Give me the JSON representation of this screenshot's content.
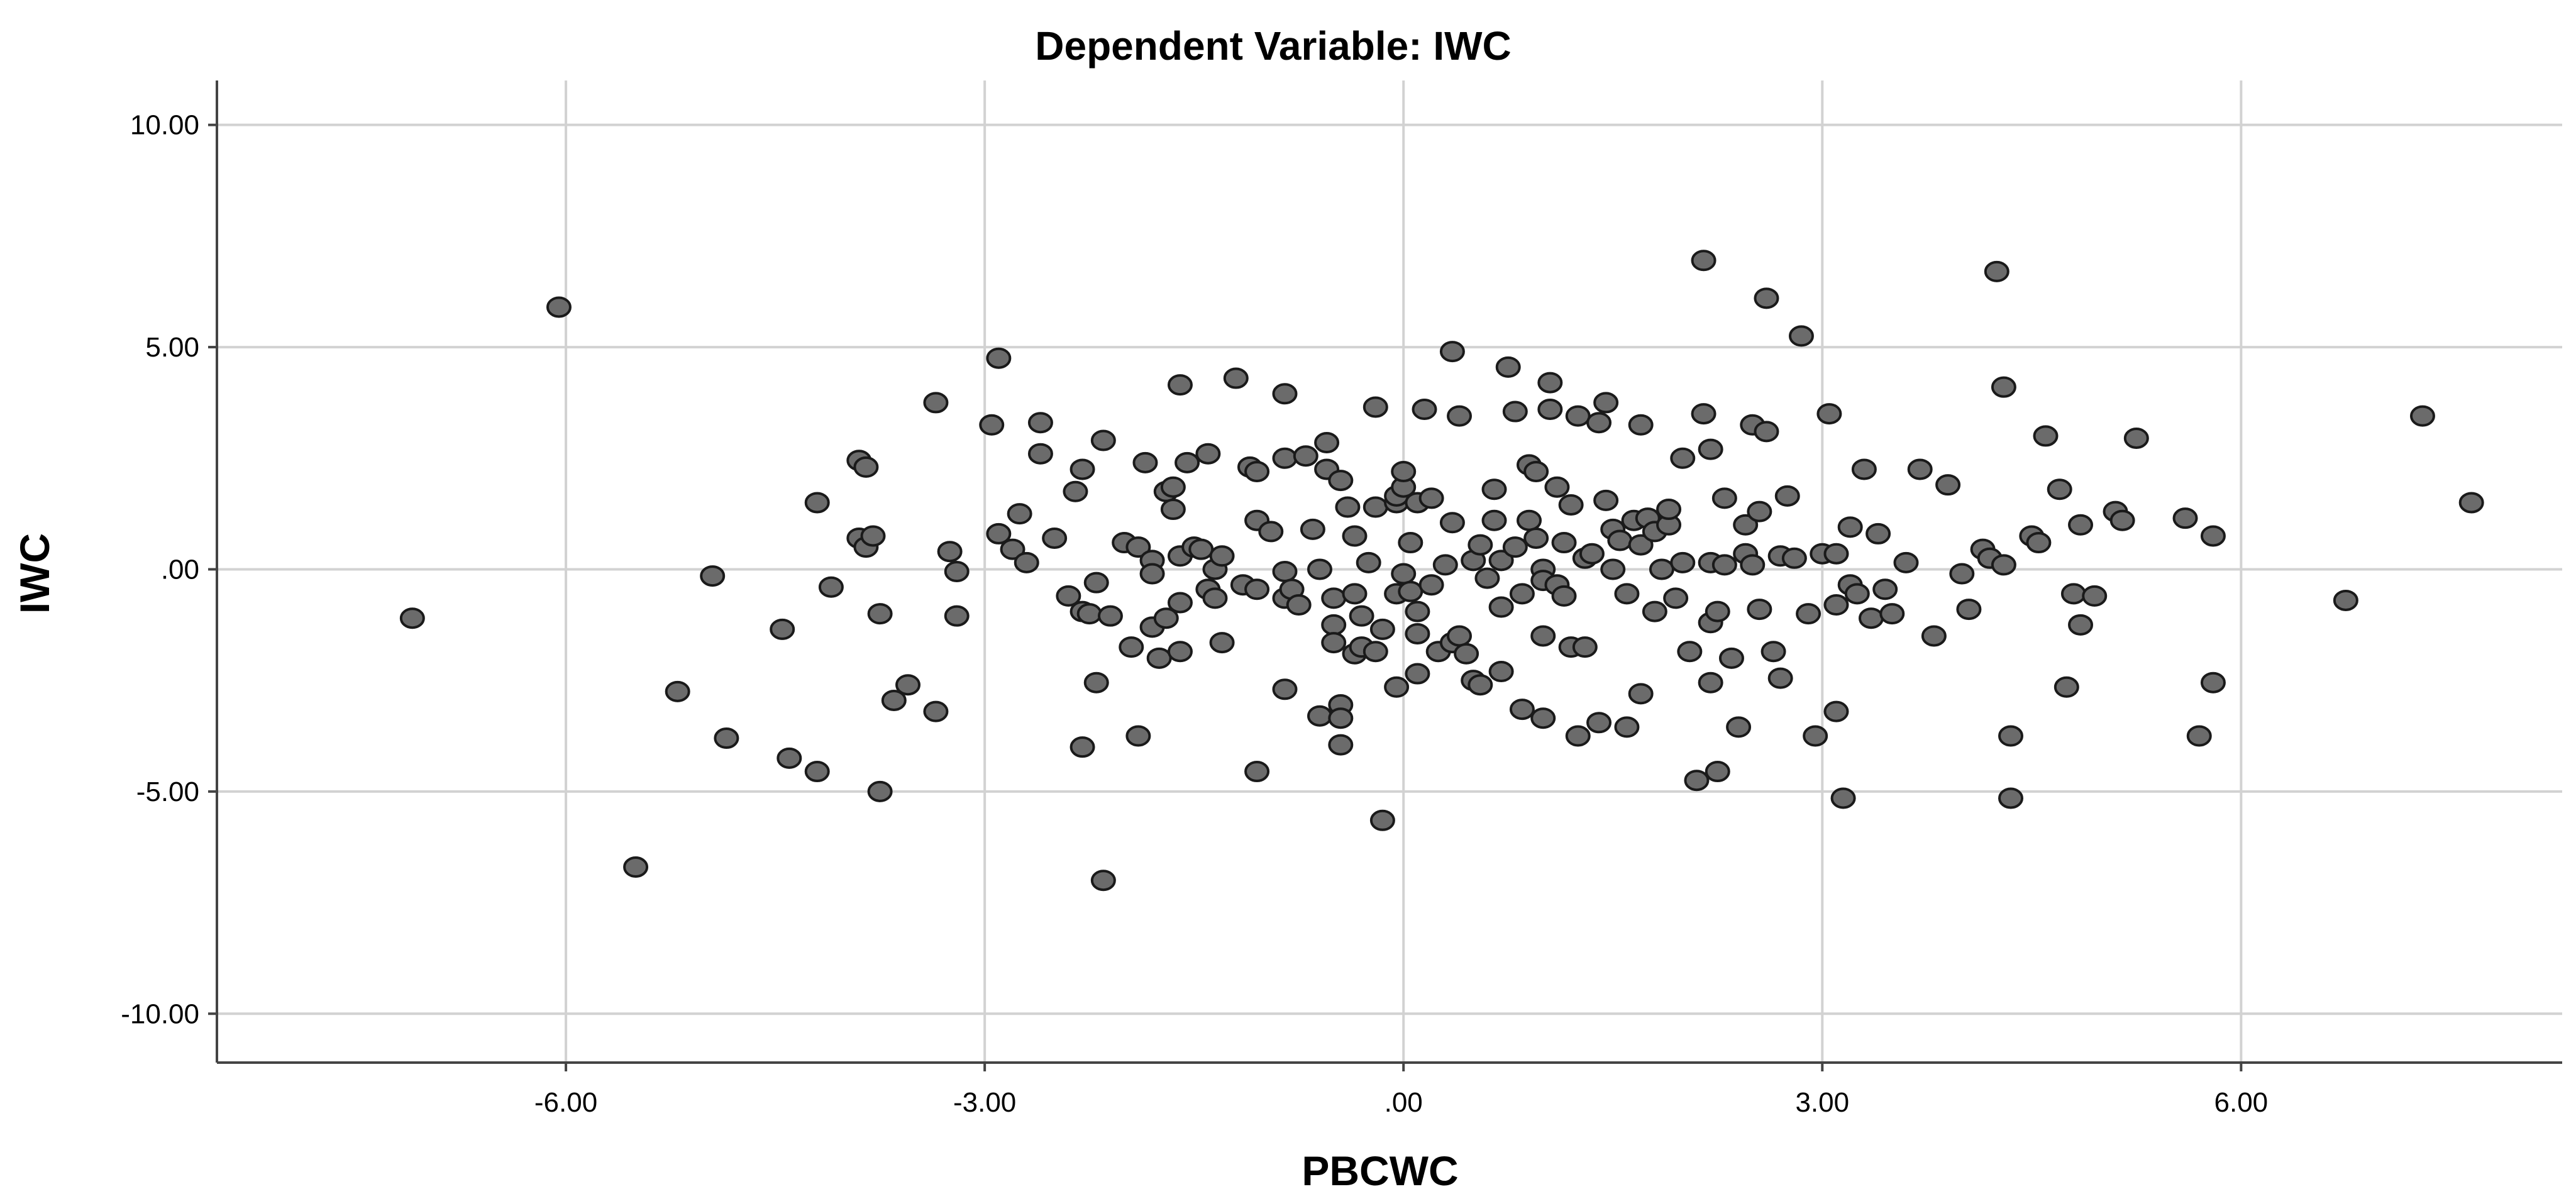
{
  "chart_data": {
    "type": "scatter",
    "title": "Dependent Variable: IWC",
    "xlabel": "PBCWC",
    "ylabel": "IWC",
    "xlim": [
      -8.5,
      8.3
    ],
    "ylim": [
      -11.1,
      11.0
    ],
    "x_ticks": [
      -6,
      -3,
      0,
      3,
      6
    ],
    "y_ticks": [
      -10,
      -5,
      0,
      5,
      10
    ],
    "x_tick_labels": [
      "-6.00",
      "-3.00",
      ".00",
      "3.00",
      "6.00"
    ],
    "y_tick_labels": [
      "-10.00",
      "-5.00",
      ".00",
      "5.00",
      "10.00"
    ],
    "grid": true,
    "point_color": "#6b6b6b",
    "point_edge_color": "#1a1a1a",
    "points": [
      [
        -7.1,
        -1.1
      ],
      [
        -6.05,
        5.9
      ],
      [
        -5.5,
        -6.7
      ],
      [
        -5.2,
        -2.75
      ],
      [
        -4.95,
        -0.15
      ],
      [
        -4.85,
        -3.8
      ],
      [
        -4.45,
        -1.35
      ],
      [
        -4.4,
        -4.25
      ],
      [
        -4.2,
        1.5
      ],
      [
        -4.2,
        -4.55
      ],
      [
        -4.1,
        -0.4
      ],
      [
        -3.9,
        2.45
      ],
      [
        -3.85,
        2.3
      ],
      [
        -3.9,
        0.7
      ],
      [
        -3.85,
        0.5
      ],
      [
        -3.8,
        0.75
      ],
      [
        -3.75,
        -1.0
      ],
      [
        -3.75,
        -5.0
      ],
      [
        -3.65,
        -2.95
      ],
      [
        -3.55,
        -2.6
      ],
      [
        -3.35,
        3.75
      ],
      [
        -3.35,
        -3.2
      ],
      [
        -3.25,
        0.4
      ],
      [
        -3.2,
        -0.05
      ],
      [
        -3.2,
        -1.05
      ],
      [
        -2.95,
        3.25
      ],
      [
        -2.9,
        4.75
      ],
      [
        -2.9,
        0.8
      ],
      [
        -2.8,
        0.45
      ],
      [
        -2.75,
        1.25
      ],
      [
        -2.7,
        0.15
      ],
      [
        -2.6,
        2.6
      ],
      [
        -2.6,
        3.3
      ],
      [
        -2.5,
        0.7
      ],
      [
        -2.4,
        -0.6
      ],
      [
        -2.35,
        1.75
      ],
      [
        -2.3,
        2.25
      ],
      [
        -2.3,
        -0.95
      ],
      [
        -2.3,
        -4.0
      ],
      [
        -2.25,
        -1.0
      ],
      [
        -2.2,
        -0.3
      ],
      [
        -2.2,
        -2.55
      ],
      [
        -2.15,
        2.9
      ],
      [
        -2.15,
        -7.0
      ],
      [
        -2.1,
        -1.05
      ],
      [
        -2.0,
        0.6
      ],
      [
        -1.95,
        -1.75
      ],
      [
        -1.9,
        0.5
      ],
      [
        -1.9,
        -3.75
      ],
      [
        -1.85,
        2.4
      ],
      [
        -1.8,
        0.2
      ],
      [
        -1.8,
        -0.1
      ],
      [
        -1.8,
        -1.3
      ],
      [
        -1.75,
        -2.0
      ],
      [
        -1.7,
        1.75
      ],
      [
        -1.7,
        -1.1
      ],
      [
        -1.65,
        1.85
      ],
      [
        -1.65,
        1.35
      ],
      [
        -1.6,
        0.3
      ],
      [
        -1.6,
        -0.75
      ],
      [
        -1.6,
        -1.85
      ],
      [
        -1.6,
        4.15
      ],
      [
        -1.55,
        2.4
      ],
      [
        -1.5,
        0.5
      ],
      [
        -1.45,
        0.45
      ],
      [
        -1.4,
        2.6
      ],
      [
        -1.4,
        -0.45
      ],
      [
        -1.35,
        0.0
      ],
      [
        -1.35,
        -0.65
      ],
      [
        -1.3,
        -1.65
      ],
      [
        -1.3,
        0.3
      ],
      [
        -1.2,
        4.3
      ],
      [
        -1.15,
        -0.35
      ],
      [
        -1.1,
        2.3
      ],
      [
        -1.05,
        2.2
      ],
      [
        -1.05,
        1.1
      ],
      [
        -1.05,
        -0.45
      ],
      [
        -1.05,
        -4.55
      ],
      [
        -0.95,
        0.85
      ],
      [
        -0.85,
        3.95
      ],
      [
        -0.85,
        2.5
      ],
      [
        -0.85,
        -0.05
      ],
      [
        -0.85,
        -0.65
      ],
      [
        -0.85,
        -2.7
      ],
      [
        -0.8,
        -0.45
      ],
      [
        -0.75,
        -0.8
      ],
      [
        -0.7,
        2.55
      ],
      [
        -0.65,
        0.9
      ],
      [
        -0.6,
        0.0
      ],
      [
        -0.6,
        -3.3
      ],
      [
        -0.55,
        2.85
      ],
      [
        -0.55,
        2.25
      ],
      [
        -0.5,
        -0.65
      ],
      [
        -0.5,
        -1.25
      ],
      [
        -0.5,
        -1.65
      ],
      [
        -0.45,
        2.0
      ],
      [
        -0.45,
        -3.05
      ],
      [
        -0.45,
        -3.35
      ],
      [
        -0.45,
        -3.95
      ],
      [
        -0.4,
        1.4
      ],
      [
        -0.35,
        0.75
      ],
      [
        -0.35,
        -0.55
      ],
      [
        -0.35,
        -1.9
      ],
      [
        -0.3,
        -1.05
      ],
      [
        -0.3,
        -1.75
      ],
      [
        -0.25,
        0.15
      ],
      [
        -0.2,
        3.65
      ],
      [
        -0.2,
        1.4
      ],
      [
        -0.2,
        -1.85
      ],
      [
        -0.15,
        -1.35
      ],
      [
        -0.15,
        -5.65
      ],
      [
        -0.05,
        1.5
      ],
      [
        -0.05,
        1.65
      ],
      [
        -0.05,
        -2.65
      ],
      [
        -0.05,
        -0.55
      ],
      [
        0.0,
        1.85
      ],
      [
        0.0,
        2.2
      ],
      [
        0.0,
        -0.1
      ],
      [
        0.05,
        0.6
      ],
      [
        0.05,
        -0.5
      ],
      [
        0.1,
        1.5
      ],
      [
        0.1,
        -0.95
      ],
      [
        0.1,
        -1.45
      ],
      [
        0.1,
        -2.35
      ],
      [
        0.15,
        3.6
      ],
      [
        0.2,
        1.6
      ],
      [
        0.2,
        -0.35
      ],
      [
        0.25,
        -1.85
      ],
      [
        0.3,
        0.1
      ],
      [
        0.35,
        4.9
      ],
      [
        0.35,
        1.05
      ],
      [
        0.35,
        -1.65
      ],
      [
        0.4,
        3.45
      ],
      [
        0.4,
        -1.5
      ],
      [
        0.45,
        -1.9
      ],
      [
        0.5,
        0.2
      ],
      [
        0.5,
        -2.5
      ],
      [
        0.55,
        0.55
      ],
      [
        0.55,
        -2.6
      ],
      [
        0.6,
        -0.2
      ],
      [
        0.65,
        1.8
      ],
      [
        0.65,
        1.1
      ],
      [
        0.7,
        0.2
      ],
      [
        0.7,
        -0.85
      ],
      [
        0.7,
        -2.3
      ],
      [
        0.75,
        4.55
      ],
      [
        0.8,
        3.55
      ],
      [
        0.8,
        0.5
      ],
      [
        0.85,
        -0.55
      ],
      [
        0.85,
        -3.15
      ],
      [
        0.9,
        2.35
      ],
      [
        0.9,
        1.1
      ],
      [
        0.95,
        2.2
      ],
      [
        0.95,
        0.7
      ],
      [
        1.0,
        0.0
      ],
      [
        1.0,
        -0.25
      ],
      [
        1.0,
        -1.5
      ],
      [
        1.0,
        -3.35
      ],
      [
        1.05,
        3.6
      ],
      [
        1.05,
        4.2
      ],
      [
        1.1,
        1.85
      ],
      [
        1.1,
        -0.35
      ],
      [
        1.15,
        0.6
      ],
      [
        1.15,
        -0.6
      ],
      [
        1.2,
        1.45
      ],
      [
        1.2,
        -1.75
      ],
      [
        1.25,
        3.45
      ],
      [
        1.25,
        -3.75
      ],
      [
        1.3,
        0.25
      ],
      [
        1.3,
        -1.75
      ],
      [
        1.35,
        0.35
      ],
      [
        1.4,
        3.3
      ],
      [
        1.4,
        -3.45
      ],
      [
        1.45,
        3.75
      ],
      [
        1.45,
        1.55
      ],
      [
        1.5,
        0.9
      ],
      [
        1.5,
        0.0
      ],
      [
        1.55,
        0.65
      ],
      [
        1.6,
        -0.55
      ],
      [
        1.6,
        -3.55
      ],
      [
        1.65,
        1.1
      ],
      [
        1.7,
        3.25
      ],
      [
        1.7,
        0.55
      ],
      [
        1.7,
        -2.8
      ],
      [
        1.75,
        1.15
      ],
      [
        1.8,
        0.85
      ],
      [
        1.8,
        -0.95
      ],
      [
        1.85,
        0.0
      ],
      [
        1.9,
        1.0
      ],
      [
        1.9,
        1.35
      ],
      [
        1.95,
        -0.65
      ],
      [
        2.0,
        2.5
      ],
      [
        2.0,
        0.15
      ],
      [
        2.05,
        -1.85
      ],
      [
        2.1,
        -4.75
      ],
      [
        2.15,
        6.95
      ],
      [
        2.15,
        3.5
      ],
      [
        2.2,
        2.7
      ],
      [
        2.2,
        0.15
      ],
      [
        2.2,
        -1.2
      ],
      [
        2.2,
        -2.55
      ],
      [
        2.25,
        -4.55
      ],
      [
        2.25,
        -0.95
      ],
      [
        2.3,
        1.6
      ],
      [
        2.3,
        0.1
      ],
      [
        2.35,
        -2.0
      ],
      [
        2.4,
        -3.55
      ],
      [
        2.45,
        0.35
      ],
      [
        2.45,
        1.0
      ],
      [
        2.5,
        3.25
      ],
      [
        2.5,
        0.1
      ],
      [
        2.55,
        1.3
      ],
      [
        2.55,
        -0.9
      ],
      [
        2.6,
        6.1
      ],
      [
        2.6,
        3.1
      ],
      [
        2.65,
        -1.85
      ],
      [
        2.7,
        0.3
      ],
      [
        2.7,
        -2.45
      ],
      [
        2.75,
        1.65
      ],
      [
        2.8,
        0.25
      ],
      [
        2.85,
        5.25
      ],
      [
        2.9,
        -1.0
      ],
      [
        2.95,
        -3.75
      ],
      [
        3.0,
        0.35
      ],
      [
        3.05,
        3.5
      ],
      [
        3.1,
        0.35
      ],
      [
        3.1,
        -0.8
      ],
      [
        3.1,
        -3.2
      ],
      [
        3.15,
        -5.15
      ],
      [
        3.2,
        0.95
      ],
      [
        3.2,
        -0.35
      ],
      [
        3.25,
        -0.55
      ],
      [
        3.3,
        2.25
      ],
      [
        3.35,
        -1.1
      ],
      [
        3.4,
        0.8
      ],
      [
        3.45,
        -0.45
      ],
      [
        3.5,
        -1.0
      ],
      [
        3.6,
        0.15
      ],
      [
        3.7,
        2.25
      ],
      [
        3.8,
        -1.5
      ],
      [
        3.9,
        1.9
      ],
      [
        4.0,
        -0.1
      ],
      [
        4.05,
        -0.9
      ],
      [
        4.15,
        0.45
      ],
      [
        4.2,
        0.25
      ],
      [
        4.25,
        6.7
      ],
      [
        4.3,
        4.1
      ],
      [
        4.3,
        0.1
      ],
      [
        4.35,
        -3.75
      ],
      [
        4.35,
        -5.15
      ],
      [
        4.5,
        0.75
      ],
      [
        4.55,
        0.6
      ],
      [
        4.6,
        3.0
      ],
      [
        4.7,
        1.8
      ],
      [
        4.75,
        -2.65
      ],
      [
        4.8,
        -0.55
      ],
      [
        4.85,
        -1.25
      ],
      [
        4.85,
        1.0
      ],
      [
        4.95,
        -0.6
      ],
      [
        5.1,
        1.3
      ],
      [
        5.15,
        1.1
      ],
      [
        5.25,
        2.95
      ],
      [
        5.6,
        1.15
      ],
      [
        5.7,
        -3.75
      ],
      [
        5.8,
        0.75
      ],
      [
        5.8,
        -2.55
      ],
      [
        6.75,
        -0.7
      ],
      [
        7.3,
        3.45
      ],
      [
        7.65,
        1.5
      ]
    ]
  }
}
